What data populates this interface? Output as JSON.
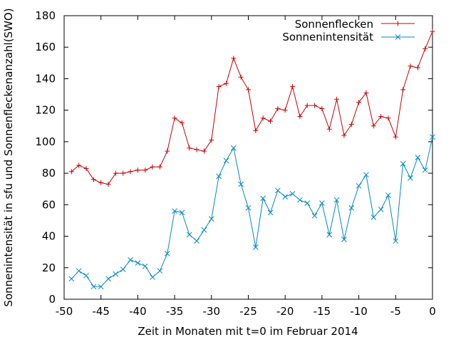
{
  "chart_data": {
    "type": "line",
    "xlabel": "Zeit in Monaten mit t=0 im Februar 2014",
    "ylabel": "Sonnenintensität in sfu und Sonnenfleckenanzahl(SWO)",
    "xlim": [
      -50,
      0
    ],
    "ylim": [
      0,
      180
    ],
    "xticks": [
      "-50",
      "-45",
      "-40",
      "-35",
      "-30",
      "-25",
      "-20",
      "-15",
      "-10",
      "-5",
      "0"
    ],
    "yticks": [
      "0",
      "20",
      "40",
      "60",
      "80",
      "100",
      "120",
      "140",
      "160",
      "180"
    ],
    "x": [
      -49,
      -48,
      -47,
      -46,
      -45,
      -44,
      -43,
      -42,
      -41,
      -40,
      -39,
      -38,
      -37,
      -36,
      -35,
      -34,
      -33,
      -32,
      -31,
      -30,
      -29,
      -28,
      -27,
      -26,
      -25,
      -24,
      -23,
      -22,
      -21,
      -20,
      -19,
      -18,
      -17,
      -16,
      -15,
      -14,
      -13,
      -12,
      -11,
      -10,
      -9,
      -8,
      -7,
      -6,
      -5,
      -4,
      -3,
      -2,
      -1,
      0
    ],
    "legend_position": "top-right",
    "grid": false,
    "series": [
      {
        "name": "Sonnenflecken",
        "color": "#cc0000",
        "marker": "plus",
        "values": [
          81,
          85,
          83,
          76,
          74,
          73,
          80,
          80,
          81,
          82,
          82,
          84,
          84,
          94,
          115,
          112,
          96,
          95,
          94,
          101,
          135,
          137,
          153,
          141,
          133,
          107,
          115,
          113,
          121,
          120,
          135,
          116,
          123,
          123,
          121,
          108,
          127,
          104,
          111,
          125,
          131,
          110,
          116,
          115,
          103,
          133,
          148,
          147,
          159,
          170
        ]
      },
      {
        "name": "Sonnenintensität",
        "color": "#0088cc",
        "marker": "cross",
        "values": [
          13,
          18,
          15,
          8,
          8,
          13,
          16,
          19,
          25,
          23,
          21,
          14,
          18,
          29,
          56,
          55,
          41,
          37,
          44,
          51,
          78,
          88,
          96,
          73,
          58,
          33,
          64,
          55,
          69,
          65,
          67,
          63,
          61,
          53,
          61,
          41,
          63,
          38,
          58,
          72,
          79,
          52,
          57,
          66,
          37,
          86,
          77,
          90,
          82,
          103
        ]
      }
    ]
  }
}
